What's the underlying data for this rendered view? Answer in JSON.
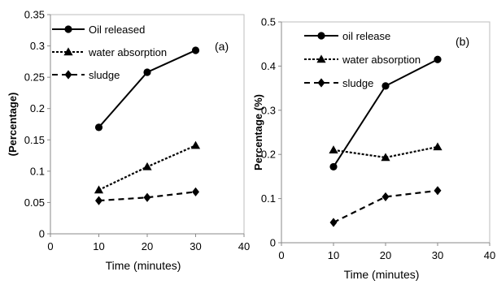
{
  "chart_data": [
    {
      "type": "line",
      "panel_label": "(a)",
      "xlabel": "Time (minutes)",
      "ylabel": "(Percentage)",
      "xlim": [
        0,
        40
      ],
      "ylim": [
        0,
        0.35
      ],
      "xticks": [
        "0",
        "10",
        "20",
        "30",
        "40"
      ],
      "yticks": [
        "0",
        "0.05",
        "0.1",
        "0.15",
        "0.2",
        "0.25",
        "0.3",
        "0.35"
      ],
      "grid": false,
      "legend_position": "top-left",
      "x": [
        10,
        20,
        30
      ],
      "series": [
        {
          "name": "Oil released",
          "values": [
            0.17,
            0.258,
            0.293
          ],
          "marker": "circle",
          "line": "solid"
        },
        {
          "name": "water absorption",
          "values": [
            0.07,
            0.107,
            0.141
          ],
          "marker": "triangle",
          "line": "dotted"
        },
        {
          "name": "sludge",
          "values": [
            0.053,
            0.058,
            0.067
          ],
          "marker": "diamond",
          "line": "dashed"
        }
      ]
    },
    {
      "type": "line",
      "panel_label": "(b)",
      "xlabel": "Time (minutes)",
      "ylabel": "Percentage (%)",
      "xlim": [
        0,
        40
      ],
      "ylim": [
        0,
        0.5
      ],
      "xticks": [
        "0",
        "10",
        "20",
        "30",
        "40"
      ],
      "yticks": [
        "0",
        "0.1",
        "0.2",
        "0.3",
        "0.4",
        "0.5"
      ],
      "grid": false,
      "legend_position": "top-left",
      "x": [
        10,
        20,
        30
      ],
      "series": [
        {
          "name": "oil release",
          "values": [
            0.172,
            0.355,
            0.415
          ],
          "marker": "circle",
          "line": "solid"
        },
        {
          "name": "water absorption",
          "values": [
            0.21,
            0.193,
            0.217
          ],
          "marker": "triangle",
          "line": "dotted"
        },
        {
          "name": "sludge",
          "values": [
            0.046,
            0.104,
            0.118
          ],
          "marker": "diamond",
          "line": "dashed"
        }
      ]
    }
  ]
}
